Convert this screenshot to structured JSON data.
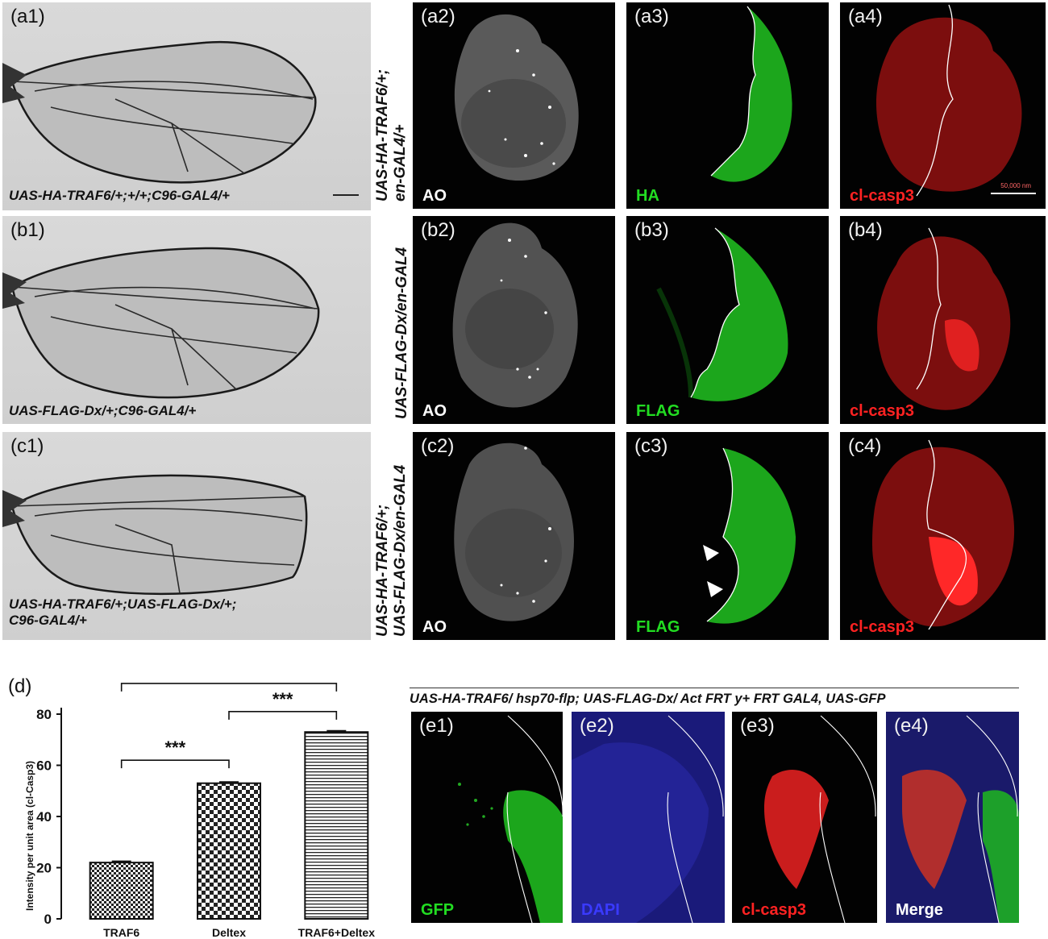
{
  "colors": {
    "green": "#22dd22",
    "red": "#ff2222",
    "blue": "#3a3aff",
    "white": "#ffffff"
  },
  "wings": [
    {
      "label": "(a1)",
      "genotype_lines": [
        "UAS-HA-TRAF6/+;+/+;C96-GAL4/+"
      ]
    },
    {
      "label": "(b1)",
      "genotype_lines": [
        "UAS-FLAG-Dx/+;C96-GAL4/+"
      ]
    },
    {
      "label": "(c1)",
      "genotype_lines": [
        "UAS-HA-TRAF6/+;UAS-FLAG-Dx/+;",
        "C96-GAL4/+"
      ]
    }
  ],
  "row_labels": [
    {
      "lines": [
        "UAS-HA-TRAF6/+;",
        "en-GAL4/+"
      ]
    },
    {
      "lines": [
        "UAS-FLAG-Dx/en-GAL4"
      ]
    },
    {
      "lines": [
        "UAS-HA-TRAF6/+;",
        "UAS-FLAG-Dx/en-GAL4"
      ]
    }
  ],
  "disc_panels": [
    [
      {
        "label": "(a2)",
        "stain": "AO",
        "stain_color": "white"
      },
      {
        "label": "(a3)",
        "stain": "HA",
        "stain_color": "green"
      },
      {
        "label": "(a4)",
        "stain": "cl-casp3",
        "stain_color": "red",
        "scale_text": "50,000 nm"
      }
    ],
    [
      {
        "label": "(b2)",
        "stain": "AO",
        "stain_color": "white"
      },
      {
        "label": "(b3)",
        "stain": "FLAG",
        "stain_color": "green"
      },
      {
        "label": "(b4)",
        "stain": "cl-casp3",
        "stain_color": "red"
      }
    ],
    [
      {
        "label": "(c2)",
        "stain": "AO",
        "stain_color": "white"
      },
      {
        "label": "(c3)",
        "stain": "FLAG",
        "stain_color": "green"
      },
      {
        "label": "(c4)",
        "stain": "cl-casp3",
        "stain_color": "red"
      }
    ]
  ],
  "chart_data": {
    "type": "bar",
    "panel_label": "(d)",
    "categories": [
      "TRAF6",
      "Deltex",
      "TRAF6+Deltex"
    ],
    "values": [
      22,
      53,
      73
    ],
    "ylabel": "Intensity per unit area (cl-Casp3)",
    "xlabel": "",
    "ylim": [
      0,
      80
    ],
    "yticks": [
      0,
      20,
      40,
      60,
      80
    ],
    "fill_patterns": [
      "checker-small",
      "checker-large",
      "horizontal-lines"
    ],
    "significance": [
      {
        "from": 0,
        "to": 1,
        "text": "***"
      },
      {
        "from": 1,
        "to": 2,
        "text": "***"
      },
      {
        "from": 0,
        "to": 2,
        "text": "***"
      }
    ]
  },
  "clone_header": "UAS-HA-TRAF6/ hsp70-flp; UAS-FLAG-Dx/ Act FRT y+ FRT GAL4, UAS-GFP",
  "clone_panels": [
    {
      "label": "(e1)",
      "stain": "GFP",
      "stain_color": "green"
    },
    {
      "label": "(e2)",
      "stain": "DAPI",
      "stain_color": "blue"
    },
    {
      "label": "(e3)",
      "stain": "cl-casp3",
      "stain_color": "red"
    },
    {
      "label": "(e4)",
      "stain": "Merge",
      "stain_color": "white"
    }
  ]
}
